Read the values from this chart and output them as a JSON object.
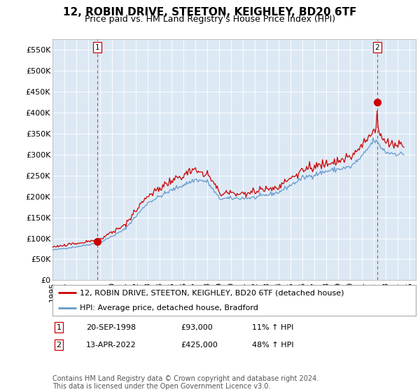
{
  "title": "12, ROBIN DRIVE, STEETON, KEIGHLEY, BD20 6TF",
  "subtitle": "Price paid vs. HM Land Registry's House Price Index (HPI)",
  "legend_label_red": "12, ROBIN DRIVE, STEETON, KEIGHLEY, BD20 6TF (detached house)",
  "legend_label_blue": "HPI: Average price, detached house, Bradford",
  "footnote": "Contains HM Land Registry data © Crown copyright and database right 2024.\nThis data is licensed under the Open Government Licence v3.0.",
  "transaction1_label": "1",
  "transaction1_date": "20-SEP-1998",
  "transaction1_price": "£93,000",
  "transaction1_hpi": "11% ↑ HPI",
  "transaction2_label": "2",
  "transaction2_date": "13-APR-2022",
  "transaction2_price": "£425,000",
  "transaction2_hpi": "48% ↑ HPI",
  "red_color": "#cc0000",
  "blue_color": "#6699cc",
  "plot_bg_color": "#dce9f5",
  "background_color": "#ffffff",
  "grid_color": "#ffffff",
  "ylim": [
    0,
    575000
  ],
  "yticks": [
    0,
    50000,
    100000,
    150000,
    200000,
    250000,
    300000,
    350000,
    400000,
    450000,
    500000,
    550000
  ],
  "ytick_labels": [
    "£0",
    "£50K",
    "£100K",
    "£150K",
    "£200K",
    "£250K",
    "£300K",
    "£350K",
    "£400K",
    "£450K",
    "£500K",
    "£550K"
  ],
  "transaction1_x": 1998.75,
  "transaction1_y": 93000,
  "transaction2_x": 2022.25,
  "transaction2_y": 425000,
  "vline1_x": 1998.75,
  "vline2_x": 2022.25,
  "marker_color": "#cc0000",
  "vline_color": "#cc0000",
  "title_fontsize": 11,
  "subtitle_fontsize": 9,
  "tick_fontsize": 8,
  "legend_fontsize": 8,
  "footnote_fontsize": 7,
  "xmin": 1995.0,
  "xmax": 2025.5
}
